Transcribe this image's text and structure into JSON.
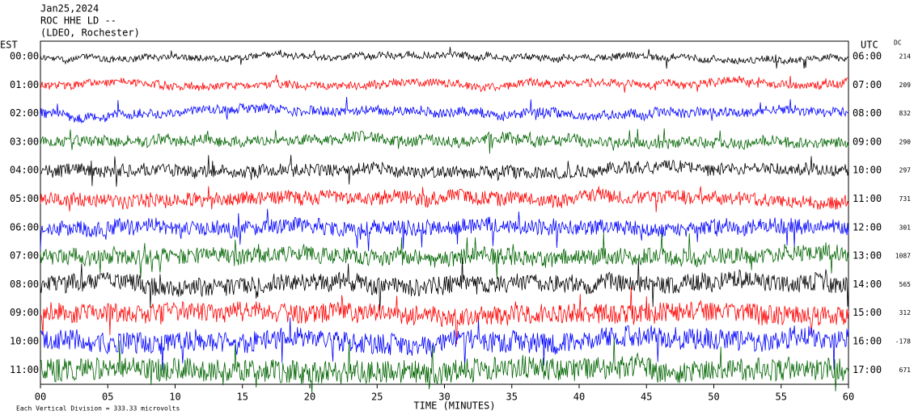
{
  "chart_data": {
    "type": "helicorder",
    "title_lines": [
      "Jan25,2024",
      "ROC HHE LD --",
      "(LDEO, Rochester)"
    ],
    "left_header": "EST",
    "right_header": "UTC",
    "dc_header": "DC",
    "categories": [
      "00:00",
      "01:00",
      "02:00",
      "03:00",
      "04:00",
      "05:00",
      "06:00",
      "07:00",
      "08:00",
      "09:00",
      "10:00",
      "11:00"
    ],
    "right_labels": [
      "06:00",
      "07:00",
      "08:00",
      "09:00",
      "10:00",
      "11:00",
      "12:00",
      "13:00",
      "14:00",
      "15:00",
      "16:00",
      "17:00"
    ],
    "dc_values": [
      214,
      209,
      832,
      290,
      297,
      731,
      301,
      1087,
      565,
      312,
      -178,
      671
    ],
    "colors": [
      "#000000",
      "#ff0000",
      "#0000ff",
      "#006400"
    ],
    "xlim": [
      0,
      60
    ],
    "xticks": [
      {
        "value": 0,
        "label": "00"
      },
      {
        "value": 5,
        "label": "05"
      },
      10,
      15,
      20,
      25,
      30,
      35,
      40,
      45,
      50,
      55,
      60
    ],
    "x_label": "TIME (MINUTES)",
    "footnote": "Each Vertical Division = 333.33 microvolts"
  }
}
